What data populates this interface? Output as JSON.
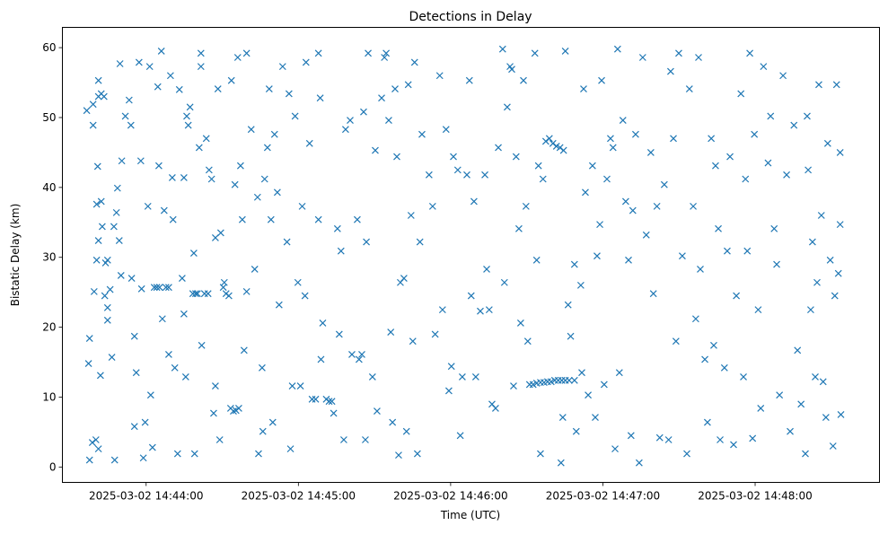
{
  "chart_data": {
    "type": "scatter",
    "title": "Detections in Delay",
    "xlabel": "Time (UTC)",
    "ylabel": "Bistatic Delay (km)",
    "x_units": "seconds relative to 2025-03-02 14:44:00",
    "xlim": [
      -33,
      289
    ],
    "ylim": [
      -2.2,
      62.9
    ],
    "grid": false,
    "marker": "x",
    "color": "#1f77b4",
    "x_ticks": [
      {
        "value": 0,
        "label": "2025-03-02 14:44:00"
      },
      {
        "value": 60,
        "label": "2025-03-02 14:45:00"
      },
      {
        "value": 120,
        "label": "2025-03-02 14:46:00"
      },
      {
        "value": 180,
        "label": "2025-03-02 14:47:00"
      },
      {
        "value": 240,
        "label": "2025-03-02 14:48:00"
      }
    ],
    "y_ticks": [
      {
        "value": 0,
        "label": "0"
      },
      {
        "value": 10,
        "label": "10"
      },
      {
        "value": 20,
        "label": "20"
      },
      {
        "value": 30,
        "label": "30"
      },
      {
        "value": 40,
        "label": "40"
      },
      {
        "value": 50,
        "label": "50"
      },
      {
        "value": 60,
        "label": "60"
      }
    ],
    "points": [
      [
        -23.4,
        51
      ],
      [
        -22.7,
        14.8
      ],
      [
        -22.3,
        18.4
      ],
      [
        -22.3,
        1.0
      ],
      [
        -20.9,
        51.9
      ],
      [
        -20.9,
        48.9
      ],
      [
        -20.5,
        25.1
      ],
      [
        -21.2,
        3.5
      ],
      [
        -19.8,
        3.9
      ],
      [
        -19.5,
        37.6
      ],
      [
        -19.1,
        43.0
      ],
      [
        -18.8,
        32.4
      ],
      [
        -19.5,
        29.6
      ],
      [
        -18.8,
        2.6
      ],
      [
        -18.8,
        55.3
      ],
      [
        -18.8,
        53.0
      ],
      [
        -17.7,
        53.4
      ],
      [
        -16.6,
        53
      ],
      [
        -17.7,
        38
      ],
      [
        -17.3,
        34.4
      ],
      [
        -18,
        13.1
      ],
      [
        -16.3,
        24.5
      ],
      [
        -16,
        29.2
      ],
      [
        -15.2,
        21
      ],
      [
        -15.2,
        22.8
      ],
      [
        -15.2,
        29.6
      ],
      [
        -14.2,
        25.4
      ],
      [
        -13.5,
        15.7
      ],
      [
        -12.7,
        34.4
      ],
      [
        -12.4,
        1.0
      ],
      [
        -11.7,
        36.4
      ],
      [
        -11.3,
        39.9
      ],
      [
        -10.6,
        32.4
      ],
      [
        -9.9,
        27.4
      ],
      [
        -10.3,
        57.7
      ],
      [
        -9.6,
        43.8
      ],
      [
        -8.2,
        50.2
      ],
      [
        -6.7,
        52.5
      ],
      [
        -6,
        48.9
      ],
      [
        -5.7,
        27
      ],
      [
        -4.6,
        18.7
      ],
      [
        -4.6,
        5.8
      ],
      [
        -3.9,
        13.5
      ],
      [
        -2.8,
        57.9
      ],
      [
        -2.1,
        43.8
      ],
      [
        -1.8,
        25.5
      ],
      [
        -1.1,
        1.3
      ],
      [
        -0.4,
        6.4
      ],
      [
        0.7,
        37.3
      ],
      [
        1.4,
        57.3
      ],
      [
        1.8,
        10.3
      ],
      [
        2.5,
        2.8
      ],
      [
        3.2,
        25.7
      ],
      [
        4.2,
        25.7
      ],
      [
        5.3,
        25.7
      ],
      [
        4.6,
        54.4
      ],
      [
        5,
        43.1
      ],
      [
        6,
        59.5
      ],
      [
        6.4,
        21.2
      ],
      [
        7.1,
        36.7
      ],
      [
        7.8,
        25.7
      ],
      [
        8.9,
        25.7
      ],
      [
        8.9,
        16.1
      ],
      [
        9.6,
        56
      ],
      [
        10.3,
        41.4
      ],
      [
        10.6,
        35.4
      ],
      [
        11.3,
        14.2
      ],
      [
        12.4,
        1.9
      ],
      [
        13.1,
        54
      ],
      [
        14.2,
        27
      ],
      [
        14.9,
        21.9
      ],
      [
        14.9,
        41.4
      ],
      [
        15.6,
        12.9
      ],
      [
        16,
        50.2
      ],
      [
        16.6,
        48.9
      ],
      [
        17.3,
        51.5
      ],
      [
        18.4,
        24.8
      ],
      [
        19.5,
        24.8
      ],
      [
        20.2,
        24.8
      ],
      [
        18.8,
        30.6
      ],
      [
        19.1,
        1.9
      ],
      [
        20.9,
        45.7
      ],
      [
        21.6,
        59.2
      ],
      [
        21.6,
        57.3
      ],
      [
        21.9,
        17.4
      ],
      [
        23,
        24.8
      ],
      [
        24.4,
        24.8
      ],
      [
        23.7,
        47
      ],
      [
        24.8,
        42.5
      ],
      [
        25.8,
        41.2
      ],
      [
        26.6,
        7.7
      ],
      [
        27.3,
        11.6
      ],
      [
        27.3,
        32.8
      ],
      [
        28.3,
        54.1
      ],
      [
        29,
        3.9
      ],
      [
        29.4,
        33.5
      ],
      [
        30.4,
        25.7
      ],
      [
        30.8,
        26.4
      ],
      [
        31.5,
        24.8
      ],
      [
        32.6,
        24.5
      ],
      [
        33.3,
        8.4
      ],
      [
        34.4,
        8
      ],
      [
        35.4,
        8.1
      ],
      [
        36.5,
        8.4
      ],
      [
        33.6,
        55.3
      ],
      [
        35,
        40.4
      ],
      [
        36.1,
        58.6
      ],
      [
        37.2,
        43.1
      ],
      [
        37.9,
        35.4
      ],
      [
        38.6,
        16.7
      ],
      [
        39.6,
        59.2
      ],
      [
        39.6,
        25.1
      ],
      [
        41.4,
        48.3
      ],
      [
        42.8,
        28.3
      ],
      [
        43.9,
        38.6
      ],
      [
        44.3,
        1.9
      ],
      [
        45.7,
        14.2
      ],
      [
        46,
        5.1
      ],
      [
        46.7,
        41.2
      ],
      [
        47.8,
        45.7
      ],
      [
        48.5,
        54.1
      ],
      [
        49.2,
        35.4
      ],
      [
        49.9,
        6.4
      ],
      [
        50.6,
        47.6
      ],
      [
        51.7,
        39.3
      ],
      [
        52.4,
        23.2
      ],
      [
        53.8,
        57.3
      ],
      [
        55.5,
        32.2
      ],
      [
        56.3,
        53.4
      ],
      [
        56.9,
        2.6
      ],
      [
        57.6,
        11.6
      ],
      [
        58.7,
        50.2
      ],
      [
        59.8,
        26.4
      ],
      [
        60.8,
        11.6
      ],
      [
        61.5,
        37.3
      ],
      [
        62.6,
        24.5
      ],
      [
        63,
        57.9
      ],
      [
        64.4,
        46.3
      ],
      [
        65.4,
        9.7
      ],
      [
        66.8,
        9.7
      ],
      [
        67.9,
        59.2
      ],
      [
        67.9,
        35.4
      ],
      [
        68.6,
        52.8
      ],
      [
        68.9,
        15.4
      ],
      [
        69.6,
        20.6
      ],
      [
        71,
        9.7
      ],
      [
        72.1,
        9.4
      ],
      [
        73.2,
        9.4
      ],
      [
        73.9,
        7.7
      ],
      [
        75.4,
        34.1
      ],
      [
        76.1,
        19
      ],
      [
        76.8,
        30.9
      ],
      [
        77.9,
        3.9
      ],
      [
        78.6,
        48.3
      ],
      [
        80.4,
        49.6
      ],
      [
        81.1,
        16.1
      ],
      [
        83.2,
        35.4
      ],
      [
        83.9,
        15.4
      ],
      [
        85,
        16.1
      ],
      [
        85.7,
        50.8
      ],
      [
        86.4,
        3.9
      ],
      [
        86.8,
        32.2
      ],
      [
        87.5,
        59.2
      ],
      [
        89.2,
        12.9
      ],
      [
        90.3,
        45.3
      ],
      [
        91,
        8
      ],
      [
        92.8,
        52.8
      ],
      [
        93.9,
        58.6
      ],
      [
        94.6,
        59.2
      ],
      [
        95.6,
        49.6
      ],
      [
        96.4,
        19.3
      ],
      [
        97.1,
        6.4
      ],
      [
        98.1,
        54.1
      ],
      [
        98.8,
        44.4
      ],
      [
        99.5,
        1.7
      ],
      [
        100.2,
        26.4
      ],
      [
        101.6,
        27
      ],
      [
        102.6,
        5.1
      ],
      [
        103.3,
        54.7
      ],
      [
        104.4,
        36
      ],
      [
        105.1,
        18
      ],
      [
        105.8,
        57.9
      ],
      [
        106.9,
        1.9
      ],
      [
        107.9,
        32.2
      ],
      [
        108.7,
        47.6
      ],
      [
        111.5,
        41.8
      ],
      [
        112.9,
        37.3
      ],
      [
        113.9,
        19
      ],
      [
        115.7,
        56
      ],
      [
        116.8,
        22.5
      ],
      [
        118.2,
        48.3
      ],
      [
        119.3,
        10.9
      ],
      [
        120.3,
        14.4
      ],
      [
        121.1,
        44.4
      ],
      [
        122.8,
        42.5
      ],
      [
        123.8,
        4.5
      ],
      [
        124.6,
        12.9
      ],
      [
        126.4,
        41.8
      ],
      [
        127.4,
        55.3
      ],
      [
        128.1,
        24.5
      ],
      [
        129.2,
        38
      ],
      [
        129.9,
        12.9
      ],
      [
        131.7,
        22.3
      ],
      [
        133.5,
        41.8
      ],
      [
        134.2,
        28.3
      ],
      [
        135.2,
        22.5
      ],
      [
        136.3,
        9
      ],
      [
        137.7,
        8.4
      ],
      [
        138.8,
        45.7
      ],
      [
        140.5,
        59.8
      ],
      [
        141.2,
        26.4
      ],
      [
        142.3,
        51.5
      ],
      [
        143.4,
        57.3
      ],
      [
        144.1,
        56.9
      ],
      [
        144.8,
        11.6
      ],
      [
        145.8,
        44.4
      ],
      [
        146.9,
        34.1
      ],
      [
        147.6,
        20.6
      ],
      [
        148.7,
        55.3
      ],
      [
        149.7,
        37.3
      ],
      [
        150.4,
        18
      ],
      [
        151.1,
        11.8
      ],
      [
        152.5,
        11.8
      ],
      [
        153.9,
        12
      ],
      [
        155.4,
        12.1
      ],
      [
        156.8,
        12.1
      ],
      [
        158.2,
        12.2
      ],
      [
        159.6,
        12.2
      ],
      [
        161,
        12.4
      ],
      [
        162.4,
        12.4
      ],
      [
        163.8,
        12.4
      ],
      [
        165.2,
        12.4
      ],
      [
        166.7,
        12.4
      ],
      [
        168.8,
        12.4
      ],
      [
        171.7,
        13.5
      ],
      [
        153.2,
        59.2
      ],
      [
        153.9,
        29.6
      ],
      [
        154.6,
        43.1
      ],
      [
        155.4,
        1.9
      ],
      [
        156.4,
        41.2
      ],
      [
        157.5,
        46.6
      ],
      [
        158.9,
        47
      ],
      [
        160.3,
        46.3
      ],
      [
        161.7,
        45.9
      ],
      [
        163.1,
        45.7
      ],
      [
        164.5,
        45.3
      ],
      [
        163.5,
        0.6
      ],
      [
        164.2,
        7.1
      ],
      [
        165.2,
        59.5
      ],
      [
        166.3,
        23.2
      ],
      [
        167.3,
        18.7
      ],
      [
        168.8,
        29
      ],
      [
        169.5,
        5.1
      ],
      [
        171.3,
        26
      ],
      [
        172.4,
        54.1
      ],
      [
        173.1,
        39.3
      ],
      [
        174.2,
        10.3
      ],
      [
        175.9,
        43.1
      ],
      [
        177,
        7.1
      ],
      [
        177.7,
        30.2
      ],
      [
        178.8,
        34.7
      ],
      [
        179.5,
        55.3
      ],
      [
        180.5,
        11.8
      ],
      [
        181.6,
        41.2
      ],
      [
        183,
        47
      ],
      [
        184,
        45.7
      ],
      [
        184.8,
        2.6
      ],
      [
        185.8,
        59.8
      ],
      [
        186.5,
        13.5
      ],
      [
        187.9,
        49.6
      ],
      [
        189,
        38
      ],
      [
        190.1,
        29.6
      ],
      [
        191.1,
        4.5
      ],
      [
        191.8,
        36.7
      ],
      [
        192.9,
        47.6
      ],
      [
        194.3,
        0.6
      ],
      [
        195.7,
        58.6
      ],
      [
        197.1,
        33.2
      ],
      [
        198.9,
        45
      ],
      [
        199.9,
        24.8
      ],
      [
        201.3,
        37.3
      ],
      [
        202.4,
        4.2
      ],
      [
        204.2,
        40.4
      ],
      [
        205.9,
        3.9
      ],
      [
        206.7,
        56.6
      ],
      [
        207.8,
        47
      ],
      [
        208.8,
        18
      ],
      [
        209.9,
        59.2
      ],
      [
        211.3,
        30.2
      ],
      [
        213.1,
        1.9
      ],
      [
        214.1,
        54.1
      ],
      [
        215.6,
        37.3
      ],
      [
        216.6,
        21.2
      ],
      [
        217.7,
        58.6
      ],
      [
        218.4,
        28.3
      ],
      [
        220.2,
        15.4
      ],
      [
        221.2,
        6.4
      ],
      [
        222.7,
        47
      ],
      [
        223.7,
        17.4
      ],
      [
        224.4,
        43.1
      ],
      [
        225.5,
        34.1
      ],
      [
        226.2,
        3.9
      ],
      [
        227.9,
        14.2
      ],
      [
        229,
        30.9
      ],
      [
        230.1,
        44.4
      ],
      [
        231.5,
        3.2
      ],
      [
        232.6,
        24.5
      ],
      [
        234.4,
        53.4
      ],
      [
        235.4,
        12.9
      ],
      [
        236.2,
        41.2
      ],
      [
        236.9,
        30.9
      ],
      [
        237.9,
        59.2
      ],
      [
        239,
        4.1
      ],
      [
        239.7,
        47.6
      ],
      [
        241.2,
        22.5
      ],
      [
        242.2,
        8.4
      ],
      [
        243.3,
        57.3
      ],
      [
        245.1,
        43.5
      ],
      [
        246.1,
        50.2
      ],
      [
        247.5,
        34.1
      ],
      [
        248.5,
        29
      ],
      [
        249.6,
        10.3
      ],
      [
        251,
        56
      ],
      [
        252.4,
        41.8
      ],
      [
        253.8,
        5.1
      ],
      [
        255.3,
        48.9
      ],
      [
        256.7,
        16.7
      ],
      [
        258.1,
        9
      ],
      [
        259.8,
        1.9
      ],
      [
        260.5,
        50.2
      ],
      [
        260.9,
        42.5
      ],
      [
        261.9,
        22.5
      ],
      [
        262.6,
        32.2
      ],
      [
        263.7,
        12.9
      ],
      [
        264.4,
        26.4
      ],
      [
        265.1,
        54.7
      ],
      [
        266.1,
        36
      ],
      [
        266.8,
        12.2
      ],
      [
        267.9,
        7.1
      ],
      [
        268.6,
        46.3
      ],
      [
        269.6,
        29.6
      ],
      [
        270.7,
        3
      ],
      [
        271.4,
        24.5
      ],
      [
        272.1,
        54.7
      ],
      [
        272.8,
        27.7
      ],
      [
        273.5,
        45
      ],
      [
        273.8,
        7.5
      ],
      [
        273.5,
        34.7
      ]
    ]
  }
}
